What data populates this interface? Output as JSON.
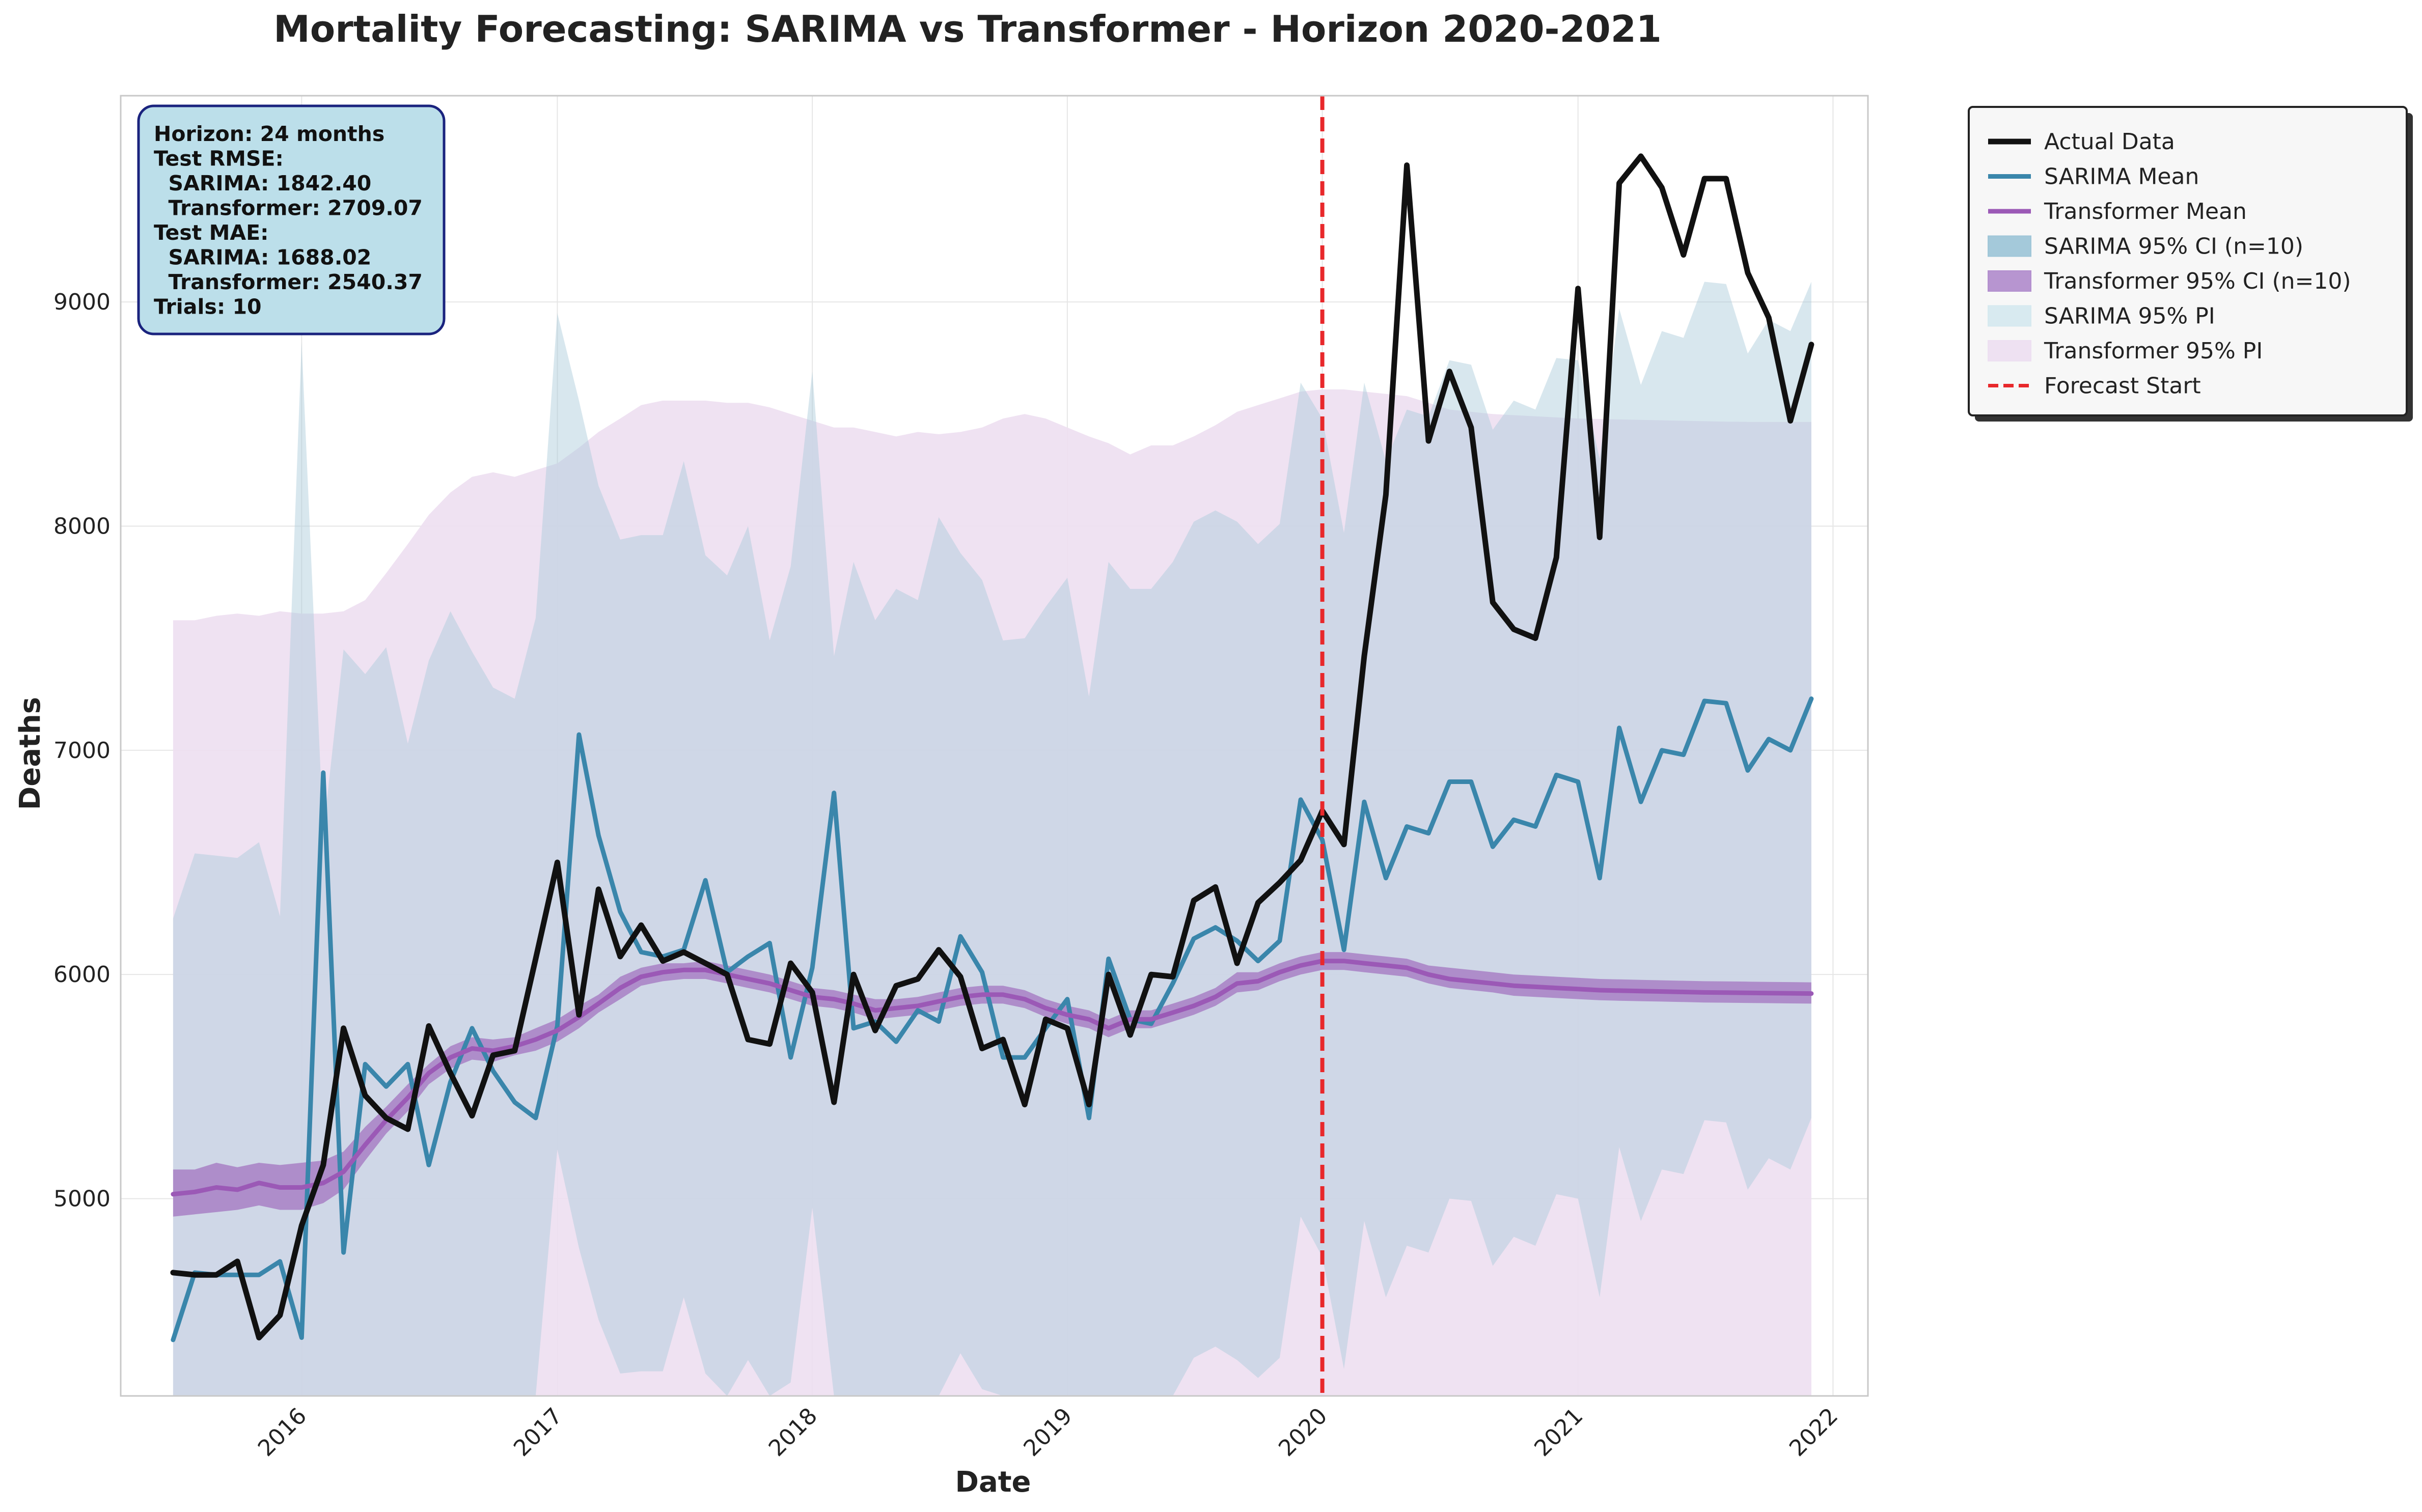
{
  "chart_data": {
    "type": "line",
    "title": "Mortality Forecasting: SARIMA vs Transformer - Horizon 2020-2021",
    "xlabel": "Date",
    "ylabel": "Deaths",
    "xlim": [
      "2015-04-17",
      "2022-02-20"
    ],
    "ylim": [
      4120,
      9920
    ],
    "x_ticks": [
      "2016",
      "2017",
      "2018",
      "2019",
      "2020",
      "2021",
      "2022"
    ],
    "y_ticks": [
      "5000",
      "6000",
      "7000",
      "8000",
      "9000"
    ],
    "grid": true,
    "legend_position": "outside-right",
    "forecast_start": "2020-01-01",
    "stats_box": [
      "Horizon: 24 months",
      "Test RMSE:",
      "  SARIMA: 1842.40",
      "  Transformer: 2709.07",
      "Test MAE:",
      "  SARIMA: 1688.02",
      "  Transformer: 2540.37",
      "Trials: 10"
    ],
    "legend": [
      {
        "label": "Actual Data",
        "kind": "line",
        "color": "#111111"
      },
      {
        "label": "SARIMA Mean",
        "kind": "line",
        "color": "#3a86ab"
      },
      {
        "label": "Transformer Mean",
        "kind": "line",
        "color": "#9b59b6"
      },
      {
        "label": "SARIMA 95% CI (n=10)",
        "kind": "band",
        "color": "#9fc6d8"
      },
      {
        "label": "Transformer 95% CI (n=10)",
        "kind": "band",
        "color": "#b38fce"
      },
      {
        "label": "SARIMA 95% PI",
        "kind": "band",
        "color": "#d6e9ef"
      },
      {
        "label": "Transformer 95% PI",
        "kind": "band",
        "color": "#eddff1"
      },
      {
        "label": "Forecast Start",
        "kind": "dashed",
        "color": "#e8282b"
      }
    ],
    "colors": {
      "actual": "#111111",
      "sarima": "#3a86ab",
      "transformer": "#9b59b6",
      "sarima_pi": "#d6e9ef",
      "transformer_pi": "#eddff1",
      "transformer_ci": "#b38fce",
      "forecast_line": "#e8282b"
    },
    "x_start": "2015-07",
    "series": [
      {
        "name": "Actual Data",
        "values": [
          4670,
          4660,
          4660,
          4720,
          4380,
          4480,
          4880,
          5150,
          5760,
          5460,
          5360,
          5310,
          5770,
          5560,
          5370,
          5640,
          5660,
          6070,
          6500,
          5820,
          6380,
          6080,
          6220,
          6060,
          6100,
          6050,
          6000,
          5710,
          5690,
          6050,
          5920,
          5430,
          6000,
          5750,
          5950,
          5980,
          6110,
          5990,
          5670,
          5710,
          5420,
          5800,
          5760,
          5420,
          6000,
          5730,
          6000,
          5990,
          6330,
          6390,
          6050,
          6320,
          6410,
          6510,
          6730,
          6580,
          7420,
          8140,
          9610,
          8380,
          8690,
          8440,
          7660,
          7540,
          7500,
          7860,
          9060,
          7950,
          9530,
          9650,
          9510,
          9210,
          9550,
          9550,
          9130,
          8930,
          8470,
          8810
        ]
      },
      {
        "name": "SARIMA Mean",
        "values": [
          4370,
          4670,
          4660,
          4660,
          4660,
          4720,
          4380,
          6900,
          4760,
          5600,
          5500,
          5600,
          5150,
          5520,
          5760,
          5570,
          5430,
          5360,
          5770,
          7070,
          6620,
          6280,
          6100,
          6080,
          6110,
          6420,
          6010,
          6080,
          6140,
          5630,
          6030,
          6810,
          5760,
          5790,
          5700,
          5840,
          5790,
          6170,
          6010,
          5630,
          5630,
          5760,
          5890,
          5360,
          6070,
          5800,
          5780,
          5960,
          6160,
          6210,
          6150,
          6060,
          6150,
          6780,
          6600,
          6110,
          6770,
          6430,
          6660,
          6630,
          6860,
          6860,
          6570,
          6690,
          6660,
          6890,
          6860,
          6430,
          7100,
          6770,
          7000,
          6980,
          7220,
          7210,
          6910,
          7050,
          7000,
          7230
        ]
      },
      {
        "name": "Transformer Mean",
        "values": [
          5020,
          5030,
          5050,
          5040,
          5070,
          5050,
          5050,
          5070,
          5120,
          5240,
          5350,
          5450,
          5560,
          5630,
          5670,
          5660,
          5680,
          5710,
          5750,
          5810,
          5870,
          5940,
          5990,
          6010,
          6020,
          6020,
          6000,
          5980,
          5960,
          5930,
          5900,
          5890,
          5870,
          5840,
          5850,
          5860,
          5880,
          5900,
          5910,
          5910,
          5890,
          5850,
          5820,
          5800,
          5760,
          5800,
          5800,
          5830,
          5860,
          5900,
          5960,
          5970,
          6010,
          6040,
          6060,
          6060,
          6050,
          6040,
          6030,
          6000,
          5980,
          5970,
          5960,
          5950,
          5945,
          5940,
          5935,
          5930,
          5928,
          5926,
          5924,
          5922,
          5920,
          5919,
          5918,
          5917,
          5916,
          5915
        ]
      }
    ],
    "bands": [
      {
        "name": "Transformer 95% PI",
        "upper": [
          7580,
          7580,
          7600,
          7610,
          7600,
          7620,
          7610,
          7610,
          7620,
          7670,
          7790,
          7920,
          8050,
          8150,
          8220,
          8240,
          8220,
          8250,
          8280,
          8350,
          8420,
          8480,
          8540,
          8560,
          8560,
          8560,
          8550,
          8550,
          8530,
          8500,
          8470,
          8440,
          8440,
          8420,
          8400,
          8420,
          8410,
          8420,
          8440,
          8480,
          8500,
          8480,
          8440,
          8400,
          8370,
          8320,
          8360,
          8360,
          8400,
          8450,
          8510,
          8540,
          8570,
          8600,
          8610,
          8610,
          8600,
          8590,
          8580,
          8550,
          8520,
          8510,
          8500,
          8495,
          8490,
          8485,
          8480,
          8478,
          8476,
          8474,
          8472,
          8470,
          8468,
          8466,
          8465,
          8465,
          8465,
          8465
        ],
        "lower": [
          4120,
          4120,
          4120,
          4120,
          4120,
          4120,
          4120,
          4120,
          4120,
          4120,
          4120,
          4120,
          4120,
          4120,
          4120,
          4120,
          4120,
          4120,
          4120,
          4120,
          4120,
          4120,
          4120,
          4120,
          4120,
          4120,
          4120,
          4120,
          4120,
          4120,
          4120,
          4120,
          4120,
          4120,
          4120,
          4120,
          4120,
          4120,
          4120,
          4120,
          4120,
          4120,
          4120,
          4120,
          4120,
          4120,
          4120,
          4120,
          4120,
          4120,
          4120,
          4120,
          4120,
          4120,
          4120,
          4120,
          4120,
          4120,
          4120,
          4120,
          4120,
          4120,
          4120,
          4120,
          4120,
          4120,
          4120,
          4120,
          4120,
          4120,
          4120,
          4120,
          4120,
          4120,
          4120,
          4120,
          4120,
          4120
        ]
      },
      {
        "name": "SARIMA 95% PI",
        "upper": [
          6250,
          6540,
          6530,
          6520,
          6590,
          6260,
          8820,
          6630,
          7450,
          7340,
          7460,
          7030,
          7400,
          7620,
          7440,
          7280,
          7230,
          7590,
          8950,
          8560,
          8180,
          7940,
          7960,
          7960,
          8290,
          7870,
          7780,
          8000,
          7490,
          7820,
          8690,
          7420,
          7840,
          7580,
          7720,
          7670,
          8040,
          7880,
          7760,
          7490,
          7500,
          7640,
          7770,
          7240,
          7840,
          7720,
          7720,
          7840,
          8020,
          8070,
          8020,
          7920,
          8010,
          8640,
          8480,
          7970,
          8640,
          8290,
          8520,
          8490,
          8740,
          8720,
          8430,
          8560,
          8520,
          8750,
          8740,
          8300,
          8970,
          8630,
          8870,
          8840,
          9090,
          9080,
          8770,
          8920,
          8870,
          9090
        ],
        "lower": [
          4120,
          4120,
          4120,
          4120,
          4120,
          4120,
          4120,
          4120,
          4120,
          4120,
          4120,
          4120,
          4120,
          4120,
          4120,
          4120,
          4120,
          4120,
          5220,
          4780,
          4460,
          4220,
          4230,
          4230,
          4560,
          4220,
          4120,
          4280,
          4120,
          4180,
          4960,
          4120,
          4120,
          4120,
          4120,
          4120,
          4120,
          4310,
          4150,
          4120,
          4120,
          4120,
          4120,
          4120,
          4120,
          4120,
          4120,
          4120,
          4290,
          4340,
          4280,
          4200,
          4290,
          4920,
          4740,
          4240,
          4900,
          4560,
          4790,
          4760,
          5000,
          4990,
          4700,
          4830,
          4790,
          5020,
          5000,
          4560,
          5230,
          4900,
          5130,
          5110,
          5350,
          5340,
          5040,
          5180,
          5130,
          5360
        ]
      },
      {
        "name": "Transformer 95% CI (n=10)",
        "upper": [
          5130,
          5130,
          5160,
          5140,
          5160,
          5150,
          5160,
          5170,
          5210,
          5320,
          5410,
          5510,
          5600,
          5680,
          5720,
          5710,
          5720,
          5760,
          5800,
          5860,
          5910,
          5990,
          6030,
          6050,
          6050,
          6060,
          6040,
          6020,
          6000,
          5970,
          5940,
          5930,
          5910,
          5890,
          5890,
          5900,
          5920,
          5940,
          5950,
          5950,
          5930,
          5890,
          5860,
          5840,
          5800,
          5840,
          5840,
          5870,
          5900,
          5940,
          6010,
          6010,
          6050,
          6080,
          6100,
          6100,
          6090,
          6080,
          6070,
          6040,
          6030,
          6020,
          6010,
          6000,
          5995,
          5990,
          5985,
          5980,
          5978,
          5976,
          5974,
          5972,
          5970,
          5969,
          5968,
          5967,
          5966,
          5965
        ],
        "lower": [
          4920,
          4930,
          4940,
          4950,
          4970,
          4950,
          4950,
          4980,
          5040,
          5170,
          5290,
          5390,
          5510,
          5580,
          5620,
          5610,
          5640,
          5660,
          5700,
          5760,
          5830,
          5890,
          5950,
          5970,
          5980,
          5980,
          5960,
          5940,
          5920,
          5890,
          5860,
          5850,
          5830,
          5800,
          5810,
          5820,
          5840,
          5860,
          5870,
          5870,
          5850,
          5810,
          5780,
          5760,
          5720,
          5760,
          5760,
          5790,
          5820,
          5860,
          5920,
          5930,
          5970,
          6000,
          6020,
          6020,
          6010,
          6000,
          5990,
          5960,
          5940,
          5930,
          5920,
          5905,
          5900,
          5895,
          5890,
          5885,
          5883,
          5881,
          5879,
          5877,
          5875,
          5874,
          5873,
          5872,
          5871,
          5870
        ]
      }
    ]
  }
}
